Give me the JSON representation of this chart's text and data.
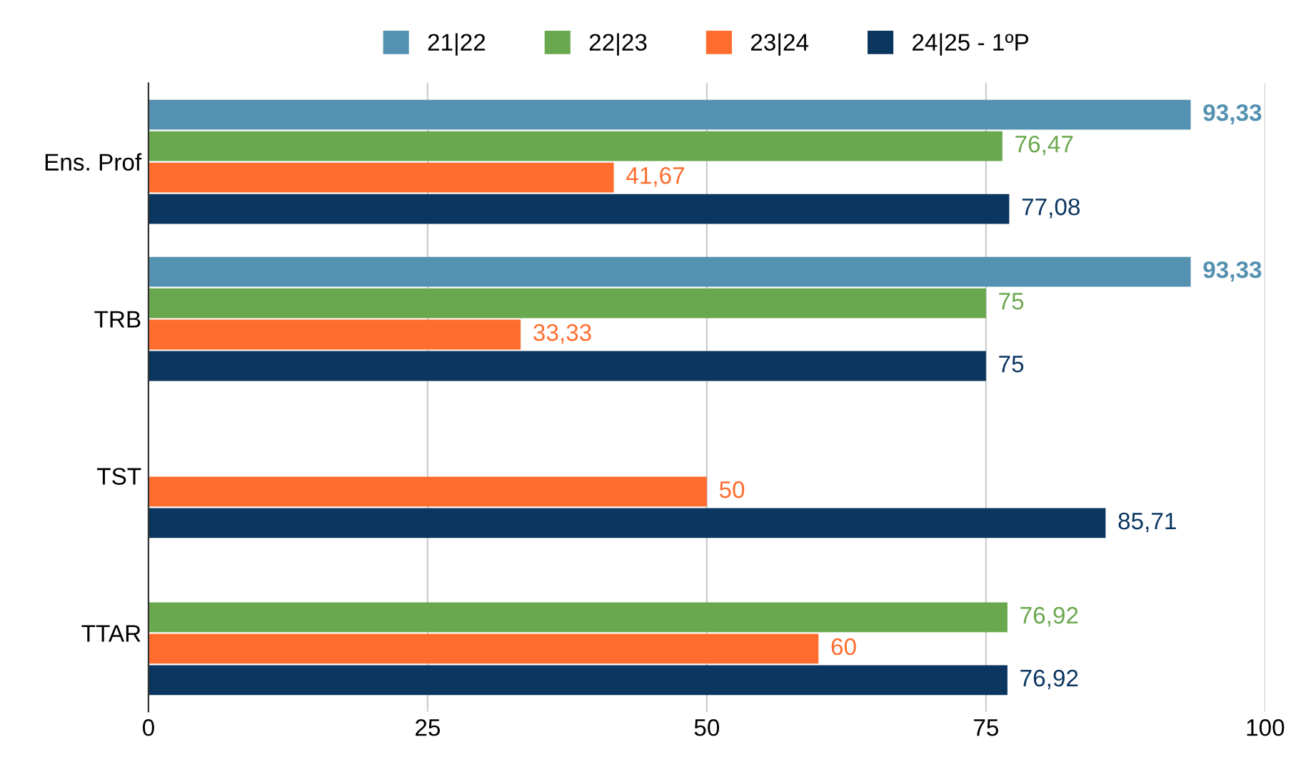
{
  "chart_data": {
    "type": "bar",
    "orientation": "horizontal",
    "categories": [
      "Ens. Prof",
      "TRB",
      "TST",
      "TTAR"
    ],
    "series": [
      {
        "name": "21|22",
        "color": "#5591b0",
        "values": [
          93.33,
          93.33,
          null,
          null
        ],
        "value_labels": [
          "93,33",
          "93,33",
          null,
          null
        ]
      },
      {
        "name": "22|23",
        "color": "#6aa84f",
        "values": [
          76.47,
          75,
          null,
          76.92
        ],
        "value_labels": [
          "76,47",
          "75",
          null,
          "76,92"
        ]
      },
      {
        "name": "23|24",
        "color": "#ff6d2e",
        "values": [
          41.67,
          33.33,
          50,
          60
        ],
        "value_labels": [
          "41,67",
          "33,33",
          "50",
          "60"
        ]
      },
      {
        "name": "24|25 - 1ºP",
        "color": "#0b3660",
        "values": [
          77.08,
          75,
          85.71,
          76.92
        ],
        "value_labels": [
          "77,08",
          "75",
          "85,71",
          "76,92"
        ]
      }
    ],
    "xlim": [
      0,
      100
    ],
    "xticks": [
      0,
      25,
      50,
      75,
      100
    ],
    "grid": "x",
    "legend": "top"
  }
}
